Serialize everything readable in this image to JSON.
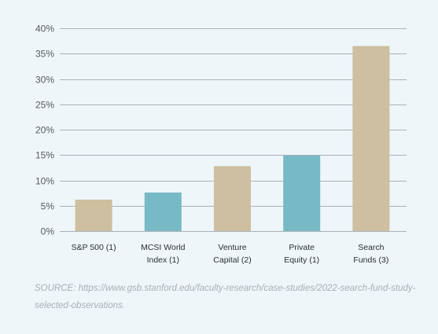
{
  "chart_data": {
    "type": "bar",
    "title": "",
    "xlabel": "",
    "ylabel": "",
    "categories": [
      [
        "S&P 500 (1)"
      ],
      [
        "MCSI World",
        "Index (1)"
      ],
      [
        "Venture",
        "Capital (2)"
      ],
      [
        "Private",
        "Equity (1)"
      ],
      [
        "Search",
        "Funds (3)"
      ]
    ],
    "values": [
      6.2,
      7.6,
      12.8,
      14.9,
      36.5
    ],
    "bar_colors": [
      "#cdbf9f",
      "#78b9c6",
      "#cdbf9f",
      "#78b9c6",
      "#cdbf9f"
    ],
    "ylim": [
      0,
      40
    ],
    "yticks": [
      0,
      5,
      10,
      15,
      20,
      25,
      30,
      35,
      40
    ],
    "ytick_labels": [
      "0%",
      "5%",
      "10%",
      "15%",
      "20%",
      "25%",
      "30%",
      "35%",
      "40%"
    ],
    "grid": true,
    "legend": false
  },
  "source_note": "SOURCE: https://www.gsb.stanford.edu/faculty-research/case-studies/2022-search-fund-study-selected-observations."
}
